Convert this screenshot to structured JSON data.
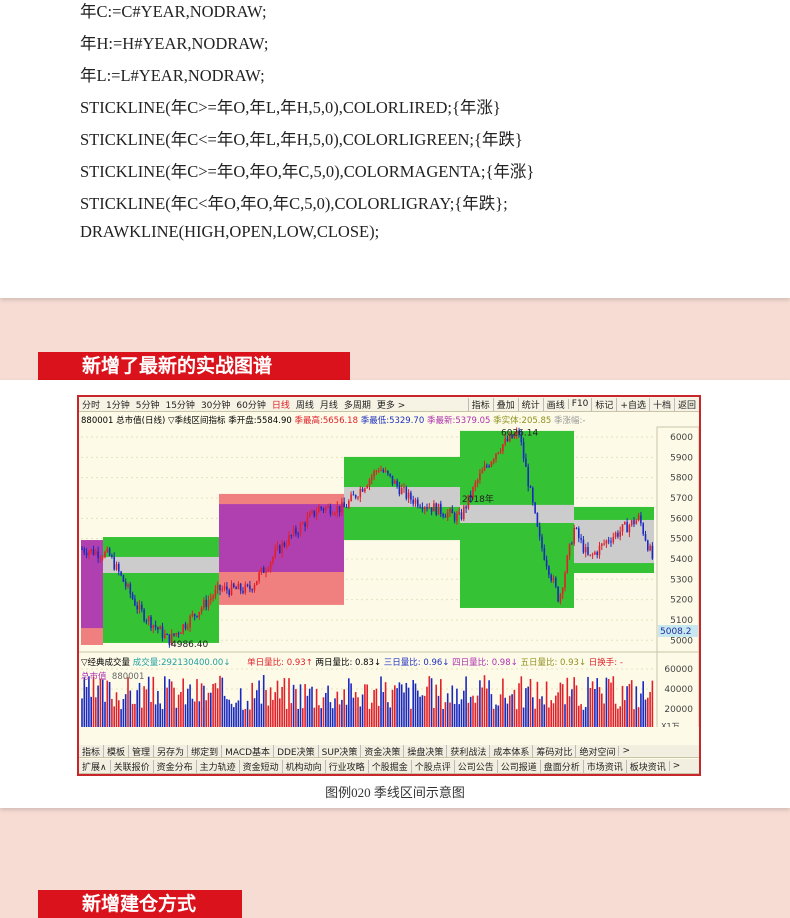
{
  "code_lines": [
    "年C:=C#YEAR,NODRAW;",
    "年H:=H#YEAR,NODRAW;",
    "年L:=L#YEAR,NODRAW;",
    "STICKLINE(年C>=年O,年L,年H,5,0),COLORLIRED;{年涨}",
    "STICKLINE(年C<=年O,年L,年H,5,0),COLORLIGREEN;{年跌}",
    "STICKLINE(年C>=年O,年O,年C,5,0),COLORMAGENTA;{年涨}",
    "STICKLINE(年C<年O,年O,年C,5,0),COLORLIGRAY;{年跌};",
    "DRAWKLINE(HIGH,OPEN,LOW,CLOSE);"
  ],
  "section_title": "新增了最新的实战图谱",
  "section_title_2": "新增建仓方式",
  "caption": "图例020  季线区间示意图",
  "app": {
    "period_tabs": [
      "分时",
      "1分钟",
      "5分钟",
      "15分钟",
      "30分钟",
      "60分钟",
      "日线",
      "周线",
      "月线",
      "多周期",
      "更多 >"
    ],
    "active_tab": "日线",
    "right_tools": [
      "指标",
      "叠加",
      "统计",
      "画线",
      "F10",
      "标记",
      "+自选",
      "十档",
      "返回"
    ],
    "info": {
      "code": "880001 总市值(日线) ▽季线区间指标",
      "open_label": "季开盘:",
      "open": "5584.90",
      "high_label": "季最高:",
      "high": "5656.18",
      "low_label": "季最低:",
      "low": "5329.70",
      "last_label": "季最新:",
      "last": "5379.05",
      "body_label": "季实体:",
      "body": "205.85",
      "chg_label": "季涨幅:-"
    },
    "vol_info": {
      "name": "▽经典成交量",
      "vol_label": "成交量:",
      "vol": "292130400.00↓",
      "r1": "单日量比: 0.93↑",
      "r2": "两日量比: 0.83↓",
      "r3": "三日量比: 0.96↓",
      "r4": "四日量比: 0.98↓",
      "r5": "五日量比: 0.93↓",
      "turn": "日换手: -"
    },
    "vol_sub": {
      "name": "总市值",
      "code": "880001"
    },
    "price_ticks": [
      6000,
      5900,
      5800,
      5700,
      5600,
      5500,
      5400,
      5300,
      5200,
      5100,
      5000
    ],
    "current_price": "5008.2",
    "vol_ticks": [
      "60000",
      "40000",
      "20000"
    ],
    "vol_unit": "X1万",
    "labels": {
      "high": "6026.14",
      "low": "4986.40",
      "year": "2018年"
    },
    "months": [
      "2017年",
      "5",
      "6",
      "7",
      "8",
      "9",
      "10",
      "11",
      "12",
      "1",
      "2",
      "3",
      "4",
      "5"
    ],
    "period_btn": "日线",
    "tb1": [
      "指标",
      "模板",
      "管理",
      "另存为",
      "绑定到",
      "MACD基本",
      "DDE决策",
      "SUP决策",
      "资金决策",
      "操盘决策",
      "获利战法",
      "成本体系",
      "筹码对比",
      "绝对空间",
      ">"
    ],
    "tb2": [
      "扩展∧",
      "关联报价",
      "资金分布",
      "主力轨迹",
      "资金短动",
      "机构动向",
      "行业攻略",
      "个股掘金",
      "个股点评",
      "公司公告",
      "公司报道",
      "盘面分析",
      "市场资讯",
      "板块资讯",
      ">"
    ],
    "quarters": [
      {
        "box": "up",
        "outer": [
          4977,
          5493
        ],
        "inner": [
          5060,
          5493
        ]
      },
      {
        "box": "down",
        "outer": [
          4987,
          5508
        ],
        "inner": [
          5331,
          5410
        ]
      },
      {
        "box": "up",
        "outer": [
          5174,
          5720
        ],
        "inner": [
          5336,
          5670
        ]
      },
      {
        "box": "down",
        "outer": [
          5493,
          5902
        ],
        "inner": [
          5656,
          5754
        ]
      },
      {
        "box": "down",
        "outer": [
          5159,
          6030
        ],
        "inner": [
          5577,
          5666
        ]
      },
      {
        "box": "down",
        "outer": [
          5331,
          5656
        ],
        "inner": [
          5380,
          5592
        ]
      }
    ],
    "colors": {
      "up_outer": "#f08080",
      "up_inner": "#b040b0",
      "down_outer": "#35c235",
      "down_inner": "#cccccc",
      "candle_up": "#e0202a",
      "candle_down": "#1a2ac0"
    }
  }
}
